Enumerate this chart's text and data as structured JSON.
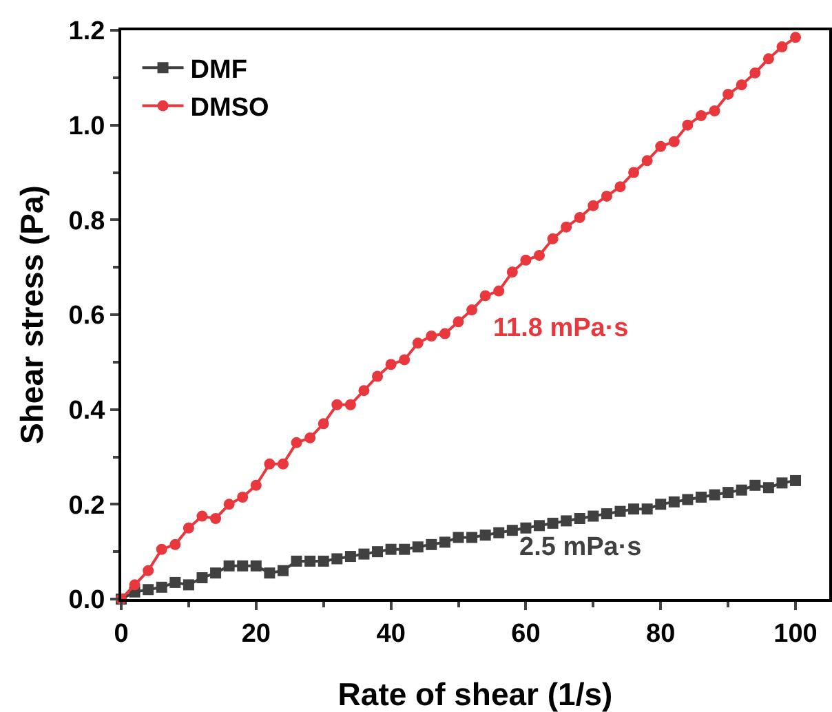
{
  "chart_data": {
    "type": "line",
    "xlabel": "Rate of shear (1/s)",
    "ylabel": "Shear stress (Pa)",
    "x": [
      0,
      2,
      4,
      6,
      8,
      10,
      12,
      14,
      16,
      18,
      20,
      22,
      24,
      26,
      28,
      30,
      32,
      34,
      36,
      38,
      40,
      42,
      44,
      46,
      48,
      50,
      52,
      54,
      56,
      58,
      60,
      62,
      64,
      66,
      68,
      70,
      72,
      74,
      76,
      78,
      80,
      82,
      84,
      86,
      88,
      90,
      92,
      94,
      96,
      98,
      100
    ],
    "series": [
      {
        "name": "DMF",
        "color": "#404040",
        "marker": "square",
        "values": [
          0,
          0.015,
          0.02,
          0.025,
          0.035,
          0.03,
          0.045,
          0.055,
          0.07,
          0.07,
          0.07,
          0.055,
          0.06,
          0.08,
          0.08,
          0.08,
          0.085,
          0.09,
          0.095,
          0.1,
          0.105,
          0.105,
          0.11,
          0.115,
          0.12,
          0.13,
          0.13,
          0.135,
          0.14,
          0.145,
          0.15,
          0.155,
          0.16,
          0.165,
          0.17,
          0.175,
          0.18,
          0.185,
          0.19,
          0.19,
          0.2,
          0.205,
          0.21,
          0.215,
          0.22,
          0.225,
          0.23,
          0.24,
          0.235,
          0.245,
          0.25
        ]
      },
      {
        "name": "DMSO",
        "color": "#e8383d",
        "marker": "circle",
        "values": [
          0,
          0.03,
          0.06,
          0.105,
          0.115,
          0.15,
          0.175,
          0.17,
          0.2,
          0.215,
          0.24,
          0.285,
          0.285,
          0.33,
          0.34,
          0.37,
          0.41,
          0.41,
          0.44,
          0.47,
          0.495,
          0.505,
          0.54,
          0.555,
          0.56,
          0.585,
          0.61,
          0.64,
          0.65,
          0.69,
          0.715,
          0.725,
          0.76,
          0.785,
          0.805,
          0.83,
          0.85,
          0.87,
          0.9,
          0.925,
          0.955,
          0.965,
          1.0,
          1.02,
          1.03,
          1.065,
          1.085,
          1.11,
          1.14,
          1.165,
          1.185
        ]
      }
    ],
    "annotations": [
      "11.8 mPa·s",
      "2.5 mPa·s"
    ],
    "xlim": [
      0,
      105
    ],
    "xticks": [
      0,
      20,
      40,
      60,
      80,
      100
    ],
    "ylim": [
      0,
      1.2
    ],
    "yticks": [
      {
        "value": 0,
        "label": "0.0"
      },
      {
        "value": 0.2,
        "label": "0.2"
      },
      {
        "value": 0.4,
        "label": "0.4"
      },
      {
        "value": 0.6,
        "label": "0.6"
      },
      {
        "value": 0.8,
        "label": "0.8"
      },
      {
        "value": 1,
        "label": "1.0"
      },
      {
        "value": 1.2,
        "label": "1.2"
      }
    ],
    "grid": false,
    "legend": "top left",
    "line_style": "solid"
  }
}
